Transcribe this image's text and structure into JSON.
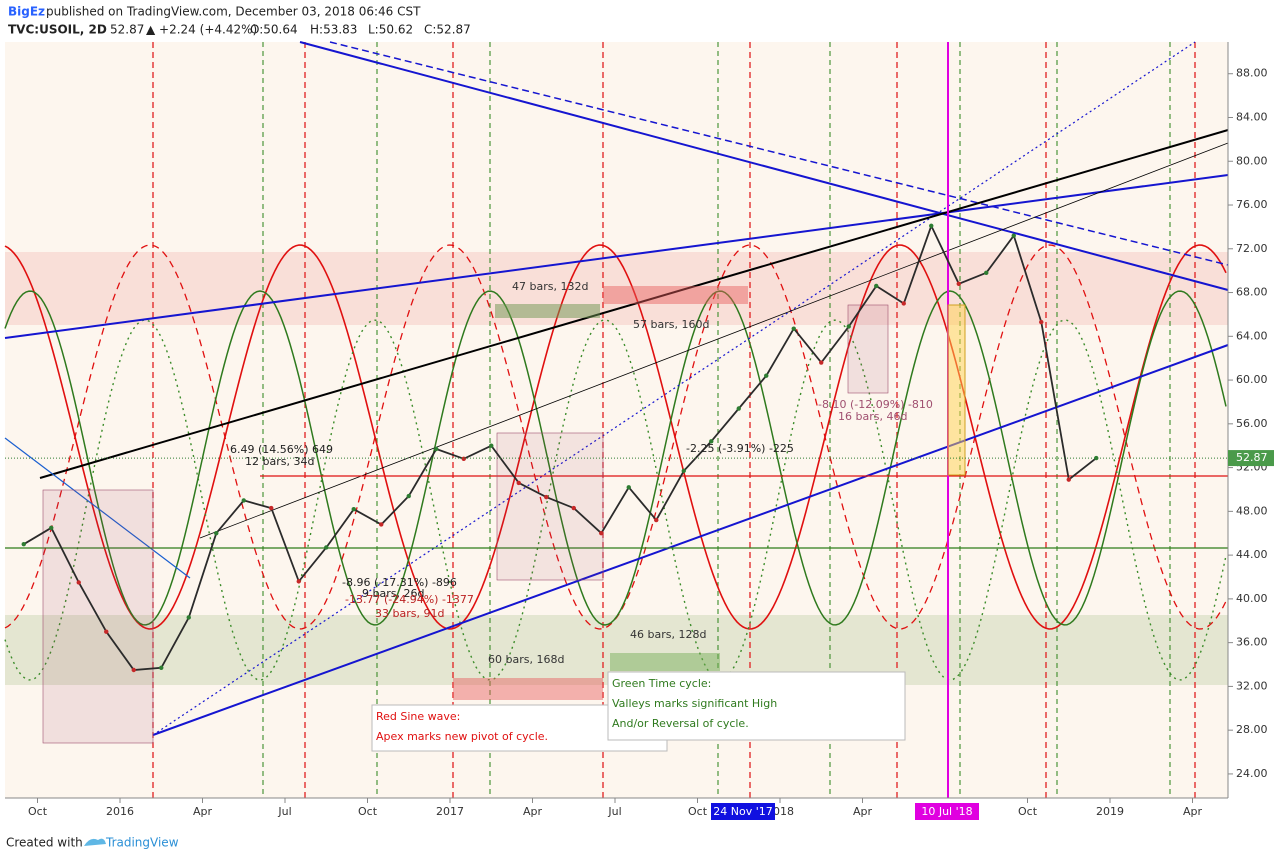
{
  "header": {
    "author": "BigEz",
    "published": "published on TradingView.com, December 03, 2018 06:46 CST",
    "symbol": "TVC:USOIL, 2D",
    "last": "52.87",
    "change": "▲ +2.24 (+4.42%)",
    "ohlc": [
      "O:50.64",
      "H:53.83",
      "L:50.62",
      "C:52.87"
    ]
  },
  "chart_data": {
    "type": "line",
    "color": "#2b2b2b",
    "categories": [
      null,
      "Oct",
      null,
      null,
      "2016",
      null,
      null,
      "Apr",
      null,
      null,
      "Jul",
      null,
      null,
      "Oct",
      null,
      null,
      "2017",
      null,
      null,
      "Apr",
      null,
      null,
      "Jul",
      null,
      null,
      "Oct",
      null,
      null,
      "2018",
      null,
      null,
      "Apr",
      null,
      null,
      null,
      null,
      null,
      "Oct",
      null,
      null,
      "2019",
      null,
      null,
      "Apr",
      null
    ],
    "values": [
      45,
      46.5,
      41.5,
      37,
      33.5,
      33.7,
      38.3,
      46,
      49,
      48.3,
      41.6,
      44.7,
      48.2,
      46.8,
      49.4,
      53.7,
      52.8,
      54,
      50.6,
      49.3,
      48.3,
      46,
      50.2,
      47.2,
      51.7,
      54.4,
      57.4,
      60.4,
      64.7,
      61.6,
      64.9,
      68.6,
      67,
      74.1,
      68.8,
      69.8,
      73.2,
      65.3,
      50.9,
      52.87,
      null,
      null,
      null,
      null,
      null
    ],
    "ylim": [
      21.8,
      90.9
    ],
    "yticks": [
      {
        "value": 24,
        "label": "24.00"
      },
      {
        "value": 28,
        "label": "28.00"
      },
      {
        "value": 32,
        "label": "32.00"
      },
      {
        "value": 36,
        "label": "36.00"
      },
      {
        "value": 40,
        "label": "40.00"
      },
      {
        "value": 44,
        "label": "44.00"
      },
      {
        "value": 48,
        "label": "48.00"
      },
      {
        "value": 52,
        "label": "52.00"
      },
      {
        "value": 56,
        "label": "56.00"
      },
      {
        "value": 60,
        "label": "60.00"
      },
      {
        "value": 64,
        "label": "64.00"
      },
      {
        "value": 68,
        "label": "68.00"
      },
      {
        "value": 72,
        "label": "72.00"
      },
      {
        "value": 76,
        "label": "76.00"
      },
      {
        "value": 80,
        "label": "80.00"
      },
      {
        "value": 84,
        "label": "84.00"
      },
      {
        "value": 88,
        "label": "88.00"
      }
    ],
    "markers": [
      "24 Nov '17",
      "10 Jul '18"
    ],
    "annotations": [
      "47 bars, 132d",
      "57 bars, 160d",
      "60 bars, 168d",
      "46 bars, 128d",
      "6.49 (14.56%) 649",
      "12 bars, 34d",
      "-8.96 (-17.31%) -896",
      "9 bars, 26d",
      "-13.77 (-24.94%) -1377",
      "33 bars, 91d",
      "-2.25 (-3.91%) -225",
      "-8.10 (-12.09%) -810",
      "16 bars, 46d"
    ],
    "notes": [
      {
        "lines": [
          "Red Sine wave:",
          "Apex marks new pivot of cycle."
        ]
      },
      {
        "lines": [
          "Green Time cycle:",
          "Valleys marks significant High",
          "And/or Reversal of cycle."
        ]
      }
    ]
  },
  "footer": {
    "created_with": "Created with",
    "brand": "TradingView"
  }
}
